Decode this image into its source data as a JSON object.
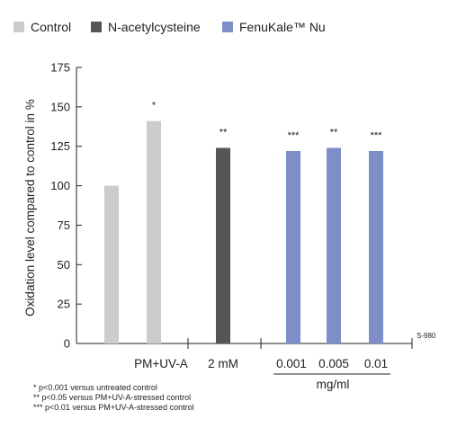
{
  "colors": {
    "control": "#cccccc",
    "nac": "#555555",
    "fenukale": "#7e8ec9",
    "axis": "#222222"
  },
  "legend": [
    {
      "label": "Control",
      "color": "#cccccc"
    },
    {
      "label": "N-acetylcysteine",
      "color": "#555555"
    },
    {
      "label": "FenuKale™ Nu",
      "color": "#7e8ec9"
    }
  ],
  "chart_data": {
    "type": "bar",
    "ylabel": "Oxidation level compared to control in %",
    "ylim": [
      0,
      175
    ],
    "yticks": [
      0,
      25,
      50,
      75,
      100,
      125,
      150,
      175
    ],
    "grid": false,
    "legend_position": "top",
    "bars": [
      {
        "group": "Control",
        "value": 100,
        "annotation": ""
      },
      {
        "group": "Control",
        "value": 141,
        "annotation": "*"
      },
      {
        "group": "N-acetylcysteine",
        "value": 124,
        "annotation": "**"
      },
      {
        "group": "FenuKale™ Nu",
        "value": 122,
        "annotation": "***"
      },
      {
        "group": "FenuKale™ Nu",
        "value": 124,
        "annotation": "**"
      },
      {
        "group": "FenuKale™ Nu",
        "value": 122,
        "annotation": "***"
      }
    ],
    "category_labels": [
      "PM+UV-A",
      "2 mM",
      "0.001",
      "0.005",
      "0.01"
    ],
    "unit_label": "mg/ml",
    "code": "S-980",
    "footnotes": [
      "* p<0.001 versus untreated control",
      "** p<0.05 versus PM+UV-A-stressed control",
      "*** p<0.01 versus PM+UV-A-stressed control"
    ]
  }
}
